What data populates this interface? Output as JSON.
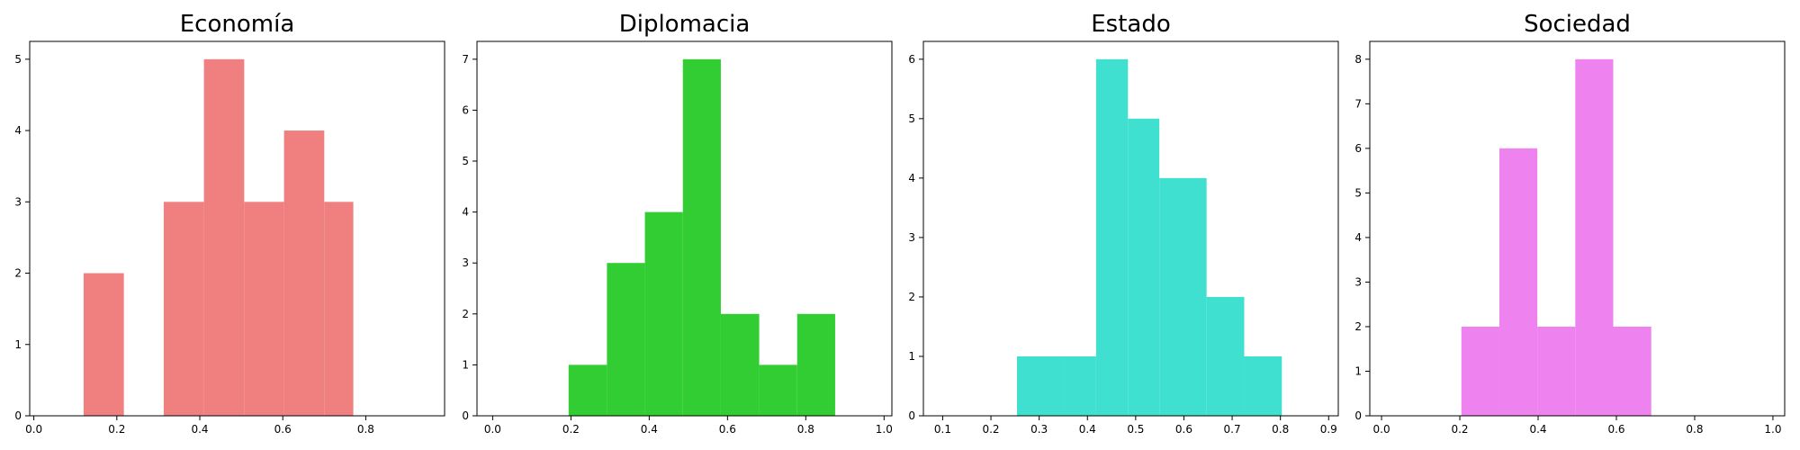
{
  "chart_data": [
    {
      "type": "bar",
      "title": "Economía",
      "color": "#F08080",
      "xlim": [
        -0.01,
        0.99
      ],
      "ylim": [
        0,
        5.25
      ],
      "xticks": [
        0.0,
        0.2,
        0.4,
        0.6,
        0.8
      ],
      "xtick_labels": [
        "0.0",
        "0.2",
        "0.4",
        "0.6",
        "0.8"
      ],
      "yticks": [
        0,
        1,
        2,
        3,
        4,
        5
      ],
      "ytick_labels": [
        "0",
        "1",
        "2",
        "3",
        "4",
        "5"
      ],
      "bins": [
        [
          0.12,
          0.217,
          2
        ],
        [
          0.217,
          0.313,
          0
        ],
        [
          0.313,
          0.41,
          3
        ],
        [
          0.41,
          0.507,
          5
        ],
        [
          0.507,
          0.603,
          3
        ],
        [
          0.603,
          0.7,
          4
        ],
        [
          0.7,
          0.77,
          3
        ]
      ]
    },
    {
      "type": "bar",
      "title": "Diplomacia",
      "color": "#32CD32",
      "xlim": [
        -0.04,
        1.02
      ],
      "ylim": [
        0,
        7.35
      ],
      "xticks": [
        0.0,
        0.2,
        0.4,
        0.6,
        0.8,
        1.0
      ],
      "xtick_labels": [
        "0.0",
        "0.2",
        "0.4",
        "0.6",
        "0.8",
        "1.0"
      ],
      "yticks": [
        0,
        1,
        2,
        3,
        4,
        5,
        6,
        7
      ],
      "ytick_labels": [
        "0",
        "1",
        "2",
        "3",
        "4",
        "5",
        "6",
        "7"
      ],
      "bins": [
        [
          0.194,
          0.292,
          1
        ],
        [
          0.292,
          0.389,
          3
        ],
        [
          0.389,
          0.486,
          4
        ],
        [
          0.486,
          0.583,
          7
        ],
        [
          0.583,
          0.681,
          2
        ],
        [
          0.681,
          0.778,
          1
        ],
        [
          0.778,
          0.875,
          2
        ]
      ]
    },
    {
      "type": "bar",
      "title": "Estado",
      "color": "#40E0D0",
      "xlim": [
        0.06,
        0.92
      ],
      "ylim": [
        0,
        6.3
      ],
      "xticks": [
        0.1,
        0.2,
        0.3,
        0.4,
        0.5,
        0.6,
        0.7,
        0.8,
        0.9
      ],
      "xtick_labels": [
        "0.1",
        "0.2",
        "0.3",
        "0.4",
        "0.5",
        "0.6",
        "0.7",
        "0.8",
        "0.9"
      ],
      "yticks": [
        0,
        1,
        2,
        3,
        4,
        5,
        6
      ],
      "ytick_labels": [
        "0",
        "1",
        "2",
        "3",
        "4",
        "5",
        "6"
      ],
      "bins": [
        [
          0.254,
          0.352,
          1
        ],
        [
          0.352,
          0.418,
          1
        ],
        [
          0.418,
          0.484,
          6
        ],
        [
          0.484,
          0.549,
          5
        ],
        [
          0.549,
          0.647,
          4
        ],
        [
          0.647,
          0.725,
          2
        ],
        [
          0.725,
          0.803,
          1
        ]
      ]
    },
    {
      "type": "bar",
      "title": "Sociedad",
      "color": "#EE82EE",
      "xlim": [
        -0.03,
        1.03
      ],
      "ylim": [
        0,
        8.4
      ],
      "xticks": [
        0.0,
        0.2,
        0.4,
        0.6,
        0.8,
        1.0
      ],
      "xtick_labels": [
        "0.0",
        "0.2",
        "0.4",
        "0.6",
        "0.8",
        "1.0"
      ],
      "yticks": [
        0,
        1,
        2,
        3,
        4,
        5,
        6,
        7,
        8
      ],
      "ytick_labels": [
        "0",
        "1",
        "2",
        "3",
        "4",
        "5",
        "6",
        "7",
        "8"
      ],
      "bins": [
        [
          0.204,
          0.301,
          2
        ],
        [
          0.301,
          0.398,
          6
        ],
        [
          0.398,
          0.495,
          2
        ],
        [
          0.495,
          0.592,
          8
        ],
        [
          0.592,
          0.689,
          2
        ]
      ]
    }
  ]
}
